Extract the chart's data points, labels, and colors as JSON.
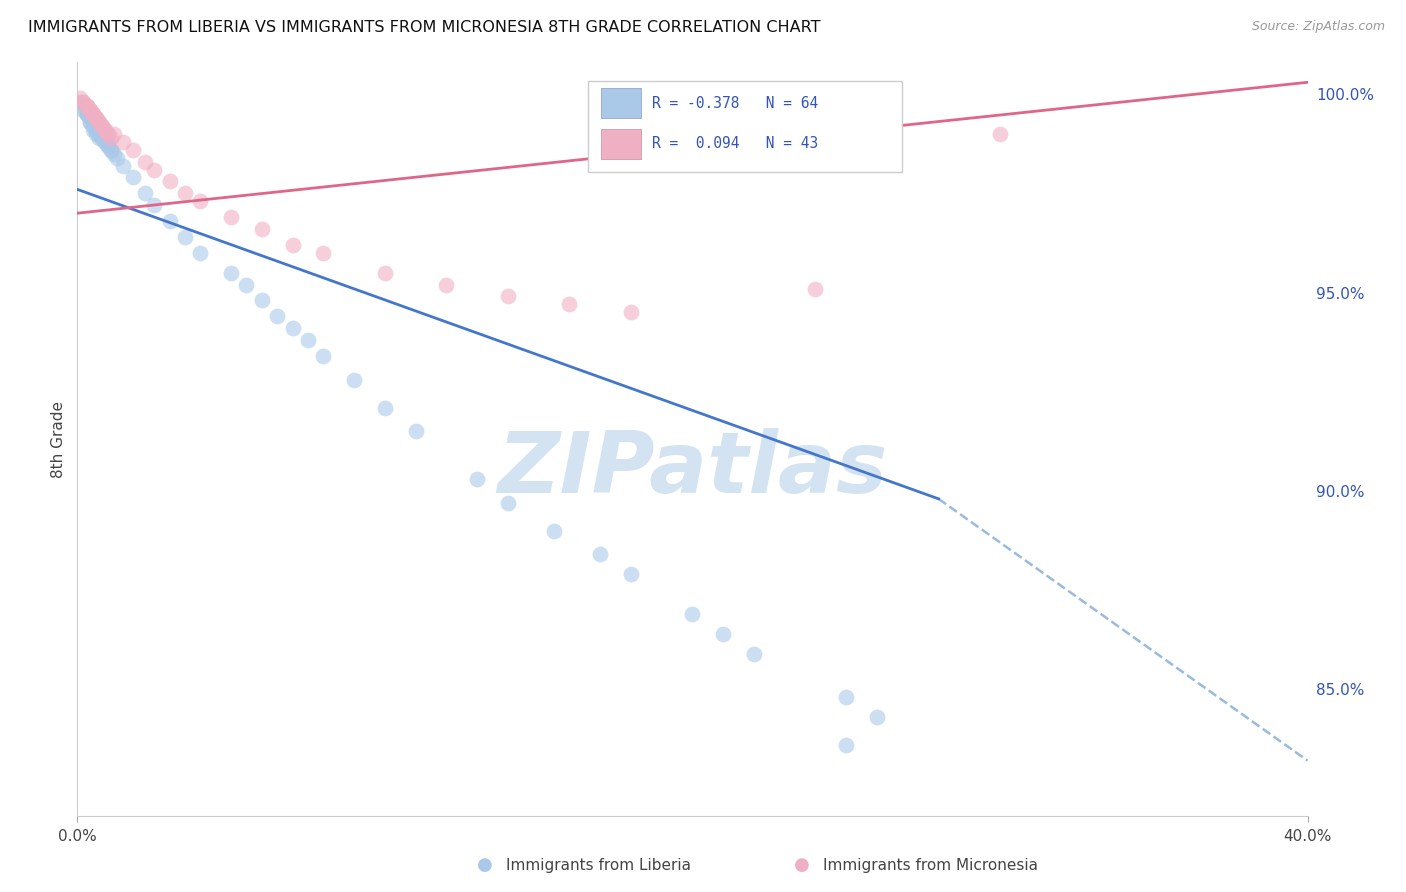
{
  "title": "IMMIGRANTS FROM LIBERIA VS IMMIGRANTS FROM MICRONESIA 8TH GRADE CORRELATION CHART",
  "source": "Source: ZipAtlas.com",
  "ylabel": "8th Grade",
  "xlim": [
    0.0,
    0.4
  ],
  "ylim": [
    0.818,
    1.008
  ],
  "ytick_vals": [
    0.85,
    0.9,
    0.95,
    1.0
  ],
  "ytick_labels": [
    "85.0%",
    "90.0%",
    "95.0%",
    "100.0%"
  ],
  "xtick_vals": [
    0.0,
    0.4
  ],
  "xtick_labels": [
    "0.0%",
    "40.0%"
  ],
  "legend_blue_r": "R = -0.378",
  "legend_blue_n": "N = 64",
  "legend_pink_r": "R =  0.094",
  "legend_pink_n": "N = 43",
  "blue_color": "#aac8e8",
  "pink_color": "#f0b0c4",
  "blue_line_color": "#4477cc",
  "pink_line_color": "#e06688",
  "dashed_line_color": "#99bbdd",
  "text_color": "#3355bb",
  "grid_color": "#dddddd",
  "watermark": "ZIPatlas",
  "watermark_color": "#ccdff0",
  "blue_scatter_x": [
    0.001,
    0.002,
    0.003,
    0.004,
    0.005,
    0.006,
    0.007,
    0.008,
    0.009,
    0.01,
    0.002,
    0.003,
    0.004,
    0.005,
    0.006,
    0.007,
    0.008,
    0.009,
    0.01,
    0.011,
    0.003,
    0.004,
    0.005,
    0.006,
    0.007,
    0.008,
    0.009,
    0.01,
    0.011,
    0.012,
    0.003,
    0.004,
    0.005,
    0.006,
    0.007,
    0.013,
    0.015,
    0.018,
    0.022,
    0.025,
    0.03,
    0.035,
    0.04,
    0.05,
    0.055,
    0.06,
    0.065,
    0.07,
    0.075,
    0.08,
    0.09,
    0.1,
    0.11,
    0.13,
    0.14,
    0.155,
    0.18,
    0.2,
    0.21,
    0.22,
    0.25,
    0.17,
    0.26,
    0.25
  ],
  "blue_scatter_y": [
    0.998,
    0.996,
    0.995,
    0.994,
    0.993,
    0.992,
    0.991,
    0.99,
    0.989,
    0.988,
    0.997,
    0.995,
    0.993,
    0.992,
    0.991,
    0.99,
    0.989,
    0.988,
    0.987,
    0.986,
    0.996,
    0.994,
    0.993,
    0.991,
    0.99,
    0.989,
    0.988,
    0.987,
    0.986,
    0.985,
    0.995,
    0.993,
    0.991,
    0.99,
    0.989,
    0.984,
    0.982,
    0.979,
    0.975,
    0.972,
    0.968,
    0.964,
    0.96,
    0.955,
    0.952,
    0.948,
    0.944,
    0.941,
    0.938,
    0.934,
    0.928,
    0.921,
    0.915,
    0.903,
    0.897,
    0.89,
    0.879,
    0.869,
    0.864,
    0.859,
    0.848,
    0.884,
    0.843,
    0.836
  ],
  "pink_scatter_x": [
    0.001,
    0.002,
    0.003,
    0.004,
    0.005,
    0.006,
    0.007,
    0.008,
    0.009,
    0.01,
    0.002,
    0.003,
    0.004,
    0.005,
    0.006,
    0.007,
    0.008,
    0.009,
    0.01,
    0.011,
    0.003,
    0.004,
    0.005,
    0.006,
    0.012,
    0.015,
    0.018,
    0.022,
    0.025,
    0.03,
    0.035,
    0.04,
    0.05,
    0.06,
    0.07,
    0.08,
    0.1,
    0.12,
    0.14,
    0.16,
    0.18,
    0.3,
    0.24
  ],
  "pink_scatter_y": [
    0.999,
    0.998,
    0.997,
    0.996,
    0.995,
    0.994,
    0.993,
    0.992,
    0.991,
    0.99,
    0.998,
    0.997,
    0.996,
    0.995,
    0.994,
    0.993,
    0.992,
    0.991,
    0.99,
    0.989,
    0.997,
    0.996,
    0.995,
    0.994,
    0.99,
    0.988,
    0.986,
    0.983,
    0.981,
    0.978,
    0.975,
    0.973,
    0.969,
    0.966,
    0.962,
    0.96,
    0.955,
    0.952,
    0.949,
    0.947,
    0.945,
    0.99,
    0.951
  ],
  "blue_trend": {
    "x": [
      0.0,
      0.28
    ],
    "y": [
      0.976,
      0.898
    ]
  },
  "pink_trend": {
    "x": [
      0.0,
      0.4
    ],
    "y": [
      0.97,
      1.003
    ]
  },
  "dashed_trend": {
    "x": [
      0.28,
      0.4
    ],
    "y": [
      0.898,
      0.832
    ]
  },
  "legend_labels": [
    "Immigrants from Liberia",
    "Immigrants from Micronesia"
  ],
  "background_color": "#ffffff"
}
